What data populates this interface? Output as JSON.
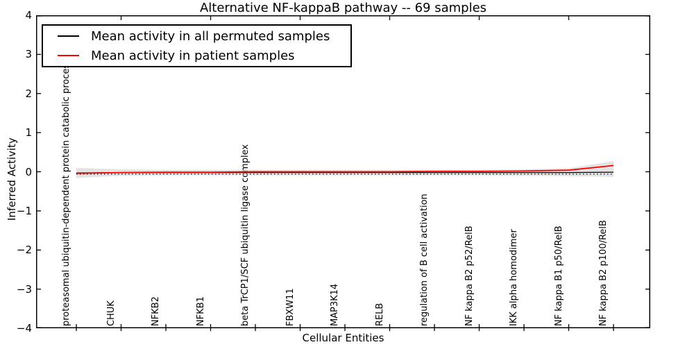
{
  "figure": {
    "title": "Alternative NF-kappaB pathway -- 69 samples",
    "xlabel": "Cellular Entities",
    "ylabel": "Inferred Activity"
  },
  "legend": {
    "items": [
      {
        "label": "Mean activity in all permuted samples",
        "color": "#000000"
      },
      {
        "label": "Mean activity in patient samples",
        "color": "#ff0000"
      }
    ]
  },
  "chart_data": {
    "type": "line",
    "title": "Alternative NF-kappaB pathway -- 69 samples",
    "xlabel": "Cellular Entities",
    "ylabel": "Inferred Activity",
    "ylim": [
      -4,
      4
    ],
    "ytick_labels": [
      "4",
      "3",
      "2",
      "1",
      "0",
      "−1",
      "−2",
      "−3",
      "−4"
    ],
    "ytick_values": [
      4,
      3,
      2,
      1,
      0,
      -1,
      -2,
      -3,
      -4
    ],
    "top_tick_category_indexes": [
      1,
      3,
      5,
      7,
      9,
      11
    ],
    "grid": false,
    "legend_position": "upper left",
    "categories": [
      "proteasomal ubiquitin-dependent protein catabolic process",
      "CHUK",
      "NFKB2",
      "NFKB1",
      "beta TrCP1/SCF ubiquitin ligase complex",
      "FBXW11",
      "MAP3K14",
      "RELB",
      "regulation of B cell activation",
      "NF kappa B2 p52/RelB",
      "IKK alpha homodimer",
      "NF kappa B1 p50/RelB",
      "NF kappa B2 p100/RelB"
    ],
    "series": [
      {
        "name": "Mean activity in all permuted samples",
        "color": "#000000",
        "style": "solid",
        "values": [
          -0.03,
          -0.02,
          -0.02,
          -0.02,
          -0.02,
          -0.02,
          -0.02,
          -0.02,
          -0.02,
          -0.02,
          -0.02,
          -0.02,
          -0.01
        ]
      },
      {
        "name": "Mean activity in patient samples",
        "color": "#ff0000",
        "style": "solid",
        "values": [
          -0.04,
          -0.02,
          -0.01,
          -0.01,
          0.0,
          0.0,
          0.0,
          0.0,
          0.01,
          0.01,
          0.02,
          0.04,
          0.16
        ]
      },
      {
        "name": "dotted baseline",
        "color": "#000000",
        "style": "dotted",
        "values": [
          -0.06,
          -0.06,
          -0.06,
          -0.06,
          -0.06,
          -0.06,
          -0.06,
          -0.06,
          -0.06,
          -0.06,
          -0.06,
          -0.06,
          -0.06
        ]
      }
    ],
    "band": {
      "color": "#d9d9d9",
      "upper": [
        0.1,
        0.06,
        0.05,
        0.05,
        0.05,
        0.05,
        0.05,
        0.05,
        0.05,
        0.05,
        0.06,
        0.09,
        0.27
      ],
      "lower": [
        -0.16,
        -0.1,
        -0.09,
        -0.09,
        -0.09,
        -0.09,
        -0.09,
        -0.09,
        -0.09,
        -0.09,
        -0.1,
        -0.11,
        -0.13
      ]
    }
  }
}
